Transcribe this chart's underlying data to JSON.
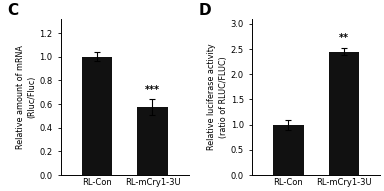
{
  "panel_C": {
    "label": "C",
    "categories": [
      "RL-Con",
      "RL-mCry1-3U"
    ],
    "values": [
      1.0,
      0.575
    ],
    "errors": [
      0.04,
      0.065
    ],
    "bar_color": "#111111",
    "ylabel_top": "Relative amount of mRNA",
    "ylabel_bot": "(Rluc/Fluc)",
    "ylim": [
      0,
      1.32
    ],
    "yticks": [
      0,
      0.2,
      0.4,
      0.6,
      0.8,
      1.0,
      1.2
    ],
    "significance": [
      "",
      "***"
    ]
  },
  "panel_D": {
    "label": "D",
    "categories": [
      "RL-Con",
      "RL-mCry1-3U"
    ],
    "values": [
      1.0,
      2.45
    ],
    "errors": [
      0.1,
      0.07
    ],
    "bar_color": "#111111",
    "ylabel_top": "Relative luciferase activity",
    "ylabel_bot": "(ratio of RLUC/FLUC)",
    "ylim": [
      0,
      3.1
    ],
    "yticks": [
      0,
      0.5,
      1.0,
      1.5,
      2.0,
      2.5,
      3.0
    ],
    "significance": [
      "",
      "**"
    ]
  },
  "background_color": "#ffffff",
  "bar_width": 0.55,
  "tick_fontsize": 6.0,
  "sig_fontsize": 7.0,
  "ylabel_fontsize": 5.8,
  "panel_label_fontsize": 11
}
